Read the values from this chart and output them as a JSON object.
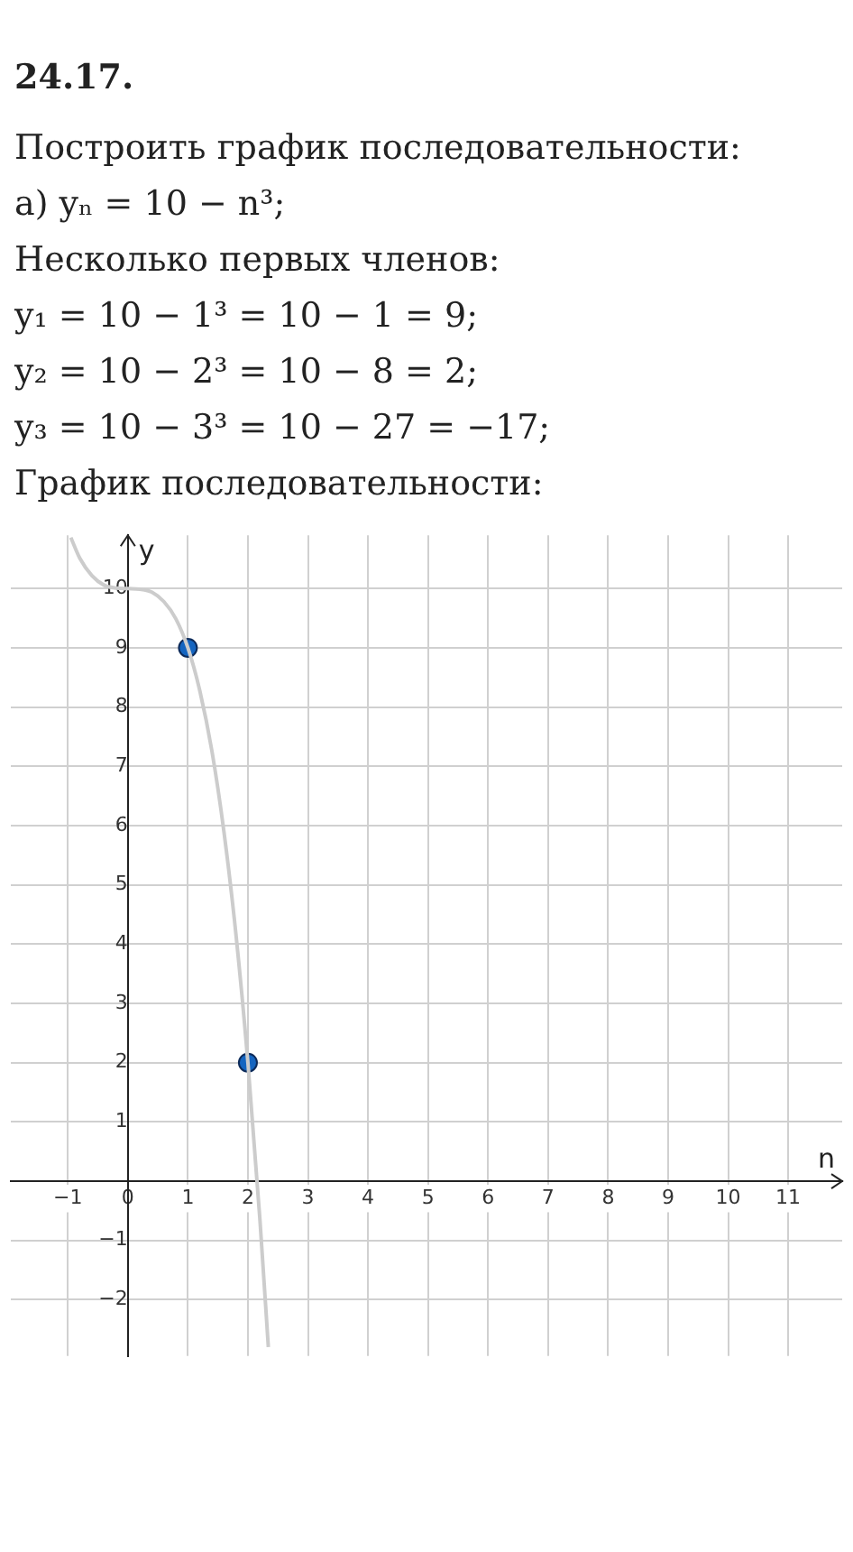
{
  "chart_data": {
    "type": "line",
    "title": "24.17.",
    "subtitle": "Построить график последовательности:",
    "annotations": [
      "а) yₙ = 10 − n³;",
      "Несколько первых членов:",
      "y₁ = 10 − 1³ = 10 − 1 = 9;",
      "y₂ = 10 − 2³ = 10 − 8 = 2;",
      "y₃ = 10 − 3³ = 10 − 27 = −17;",
      "График последовательности:"
    ],
    "xlabel": "n",
    "ylabel": "y",
    "series": [
      {
        "color": "#cccccc",
        "x": [
          -0.95,
          -0.8,
          -0.6,
          -0.4,
          -0.2,
          0,
          0.2,
          0.4,
          0.6,
          0.8,
          1,
          1.2,
          1.4,
          1.6,
          1.8,
          2,
          2.2,
          2.34
        ],
        "values": [
          10.86,
          10.51,
          10.22,
          10.06,
          10.01,
          10,
          9.99,
          9.94,
          9.78,
          9.49,
          9,
          8.27,
          7.26,
          5.9,
          4.17,
          2,
          -0.65,
          -2.8
        ]
      },
      {
        "type": "scatter",
        "color": "#1565c0",
        "x": [
          1,
          2
        ],
        "values": [
          9,
          2
        ],
        "marker": "circle"
      }
    ],
    "xlim": [
      -1.95,
      11.9
    ],
    "ylim": [
      -2.95,
      10.9
    ],
    "xticks": [
      -1,
      0,
      1,
      2,
      3,
      4,
      5,
      6,
      7,
      8,
      9,
      10,
      11
    ],
    "yticks": [
      -2,
      -1,
      {
        "value": 0,
        "label": null
      },
      1,
      2,
      3,
      4,
      5,
      6,
      7,
      8,
      9,
      10
    ],
    "grid": true,
    "legend": false
  }
}
